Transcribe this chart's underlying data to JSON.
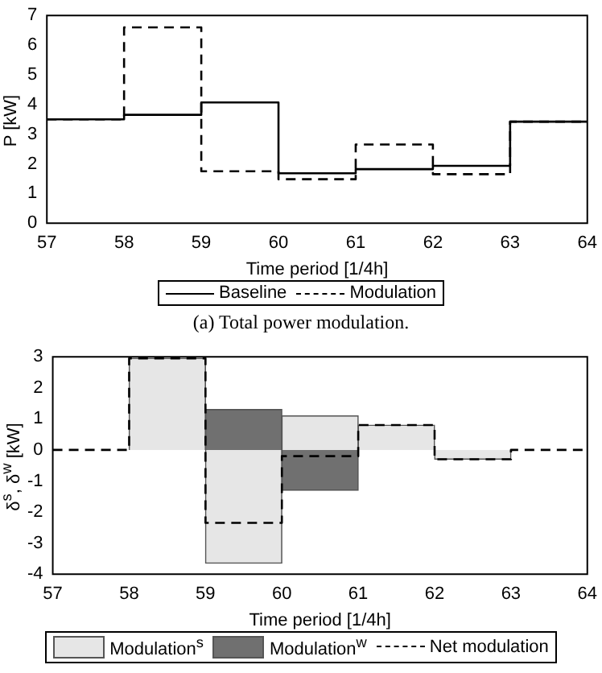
{
  "chart_data": [
    {
      "type": "step",
      "xlabel": "Time period [1/4h]",
      "ylabel": "P [kW]",
      "x": [
        57,
        58,
        59,
        60,
        61,
        62,
        63,
        64
      ],
      "series": [
        {
          "name": "Baseline",
          "color": "#000000",
          "line_style": "solid",
          "values": [
            3.5,
            3.65,
            4.07,
            1.68,
            1.82,
            1.93,
            3.42,
            3.42
          ]
        },
        {
          "name": "Modulation",
          "color": "#000000",
          "line_style": "dashed",
          "values": [
            3.5,
            6.6,
            1.75,
            1.48,
            2.65,
            1.65,
            3.42,
            3.42
          ]
        }
      ],
      "xlim": [
        57,
        64
      ],
      "xticks": [
        57,
        58,
        59,
        60,
        61,
        62,
        63,
        64
      ],
      "ylim": [
        0,
        7
      ],
      "yticks": [
        0,
        1,
        2,
        3,
        4,
        5,
        6,
        7
      ],
      "legend": "bottom",
      "grid": false,
      "annotations": [
        "(a) Total power modulation."
      ]
    },
    {
      "type": "bar",
      "stacked": true,
      "xlabel": "Time period [1/4h]",
      "ylabel": "δ$^{s}$, δ$^{w}$ [kW]",
      "x": [
        58.5,
        59.5,
        60.5,
        61.5,
        62.5
      ],
      "series": [
        {
          "name": "Modulation$^{s}$",
          "color": "#e6e6e6",
          "values": [
            2.95,
            -3.65,
            1.1,
            0.8,
            -0.3
          ]
        },
        {
          "name": "Modulation$^{w}$",
          "color": "#707070",
          "values": [
            null,
            1.3,
            -1.3,
            null,
            null
          ]
        },
        {
          "name": "Net modulation",
          "type": "step",
          "color": "#000000",
          "line_style": "dashed",
          "x": [
            57,
            58,
            59,
            60,
            61,
            62,
            63,
            64
          ],
          "values": [
            0,
            2.95,
            -2.35,
            -0.2,
            0.8,
            -0.3,
            0,
            0
          ]
        }
      ],
      "xlim": [
        57,
        64
      ],
      "xticks": [
        57,
        58,
        59,
        60,
        61,
        62,
        63,
        64
      ],
      "ylim": [
        -4,
        3
      ],
      "yticks": [
        -4,
        -3,
        -2,
        -1,
        0,
        1,
        2,
        3
      ],
      "legend": "bottom",
      "grid": false
    }
  ]
}
